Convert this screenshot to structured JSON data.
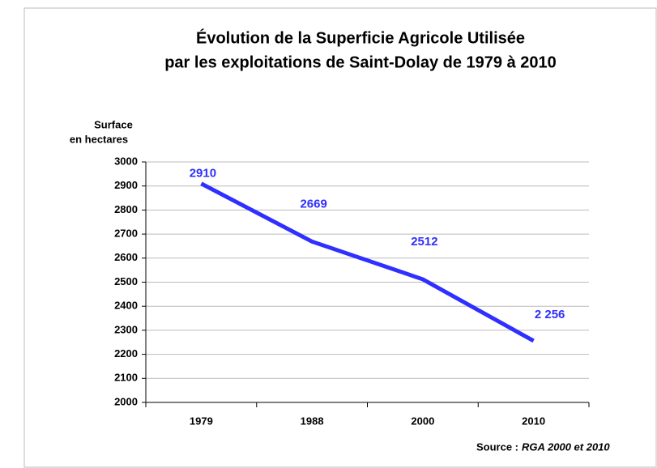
{
  "chart_data": {
    "type": "line",
    "title": [
      "Évolution de la Superficie Agricole Utilisée",
      "par les exploitations de Saint-Dolay de 1979 à 2010"
    ],
    "ylabel": [
      "Surface",
      "en hectares"
    ],
    "categories": [
      "1979",
      "1988",
      "2000",
      "2010"
    ],
    "values": [
      2910,
      2669,
      2512,
      2256
    ],
    "value_labels": [
      "2910",
      "2669",
      "2512",
      "2 256"
    ],
    "color": "#2f2fff",
    "ylim": [
      2000,
      3000
    ],
    "yticks": [
      2000,
      2100,
      2200,
      2300,
      2400,
      2500,
      2600,
      2700,
      2800,
      2900,
      3000
    ],
    "grid": true,
    "source": {
      "label": "Source :",
      "text": "RGA 2000 et 2010"
    }
  }
}
